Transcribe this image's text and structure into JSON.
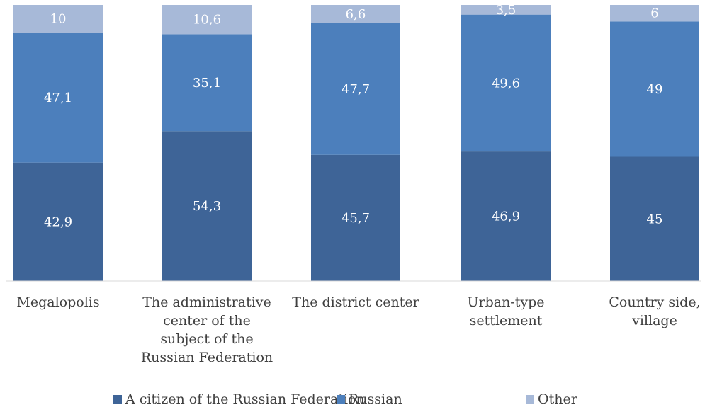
{
  "chart_data": {
    "type": "bar",
    "stacked": true,
    "percent_stacked": true,
    "categories": [
      [
        "Megalopolis"
      ],
      [
        "The administrative",
        "center of the",
        "subject of the",
        "Russian Federation"
      ],
      [
        "The district center"
      ],
      [
        "Urban-type",
        "settlement"
      ],
      [
        "Country side,",
        "village"
      ]
    ],
    "series": [
      {
        "name": "A citizen of the Russian Federation",
        "color": "#3e6497",
        "values": [
          42.9,
          54.3,
          45.7,
          46.9,
          45
        ],
        "labels": [
          "42,9",
          "54,3",
          "45,7",
          "46,9",
          "45"
        ]
      },
      {
        "name": "Russian",
        "color": "#4c7fbc",
        "values": [
          47.1,
          35.1,
          47.7,
          49.6,
          49
        ],
        "labels": [
          "47,1",
          "35,1",
          "47,7",
          "49,6",
          "49"
        ]
      },
      {
        "name": "Other",
        "color": "#a7b9d8",
        "values": [
          10,
          10.6,
          6.6,
          3.5,
          6
        ],
        "labels": [
          "10",
          "10,6",
          "6,6",
          "3,5",
          "6"
        ]
      }
    ],
    "legend_position": "bottom",
    "gridlines": false
  }
}
